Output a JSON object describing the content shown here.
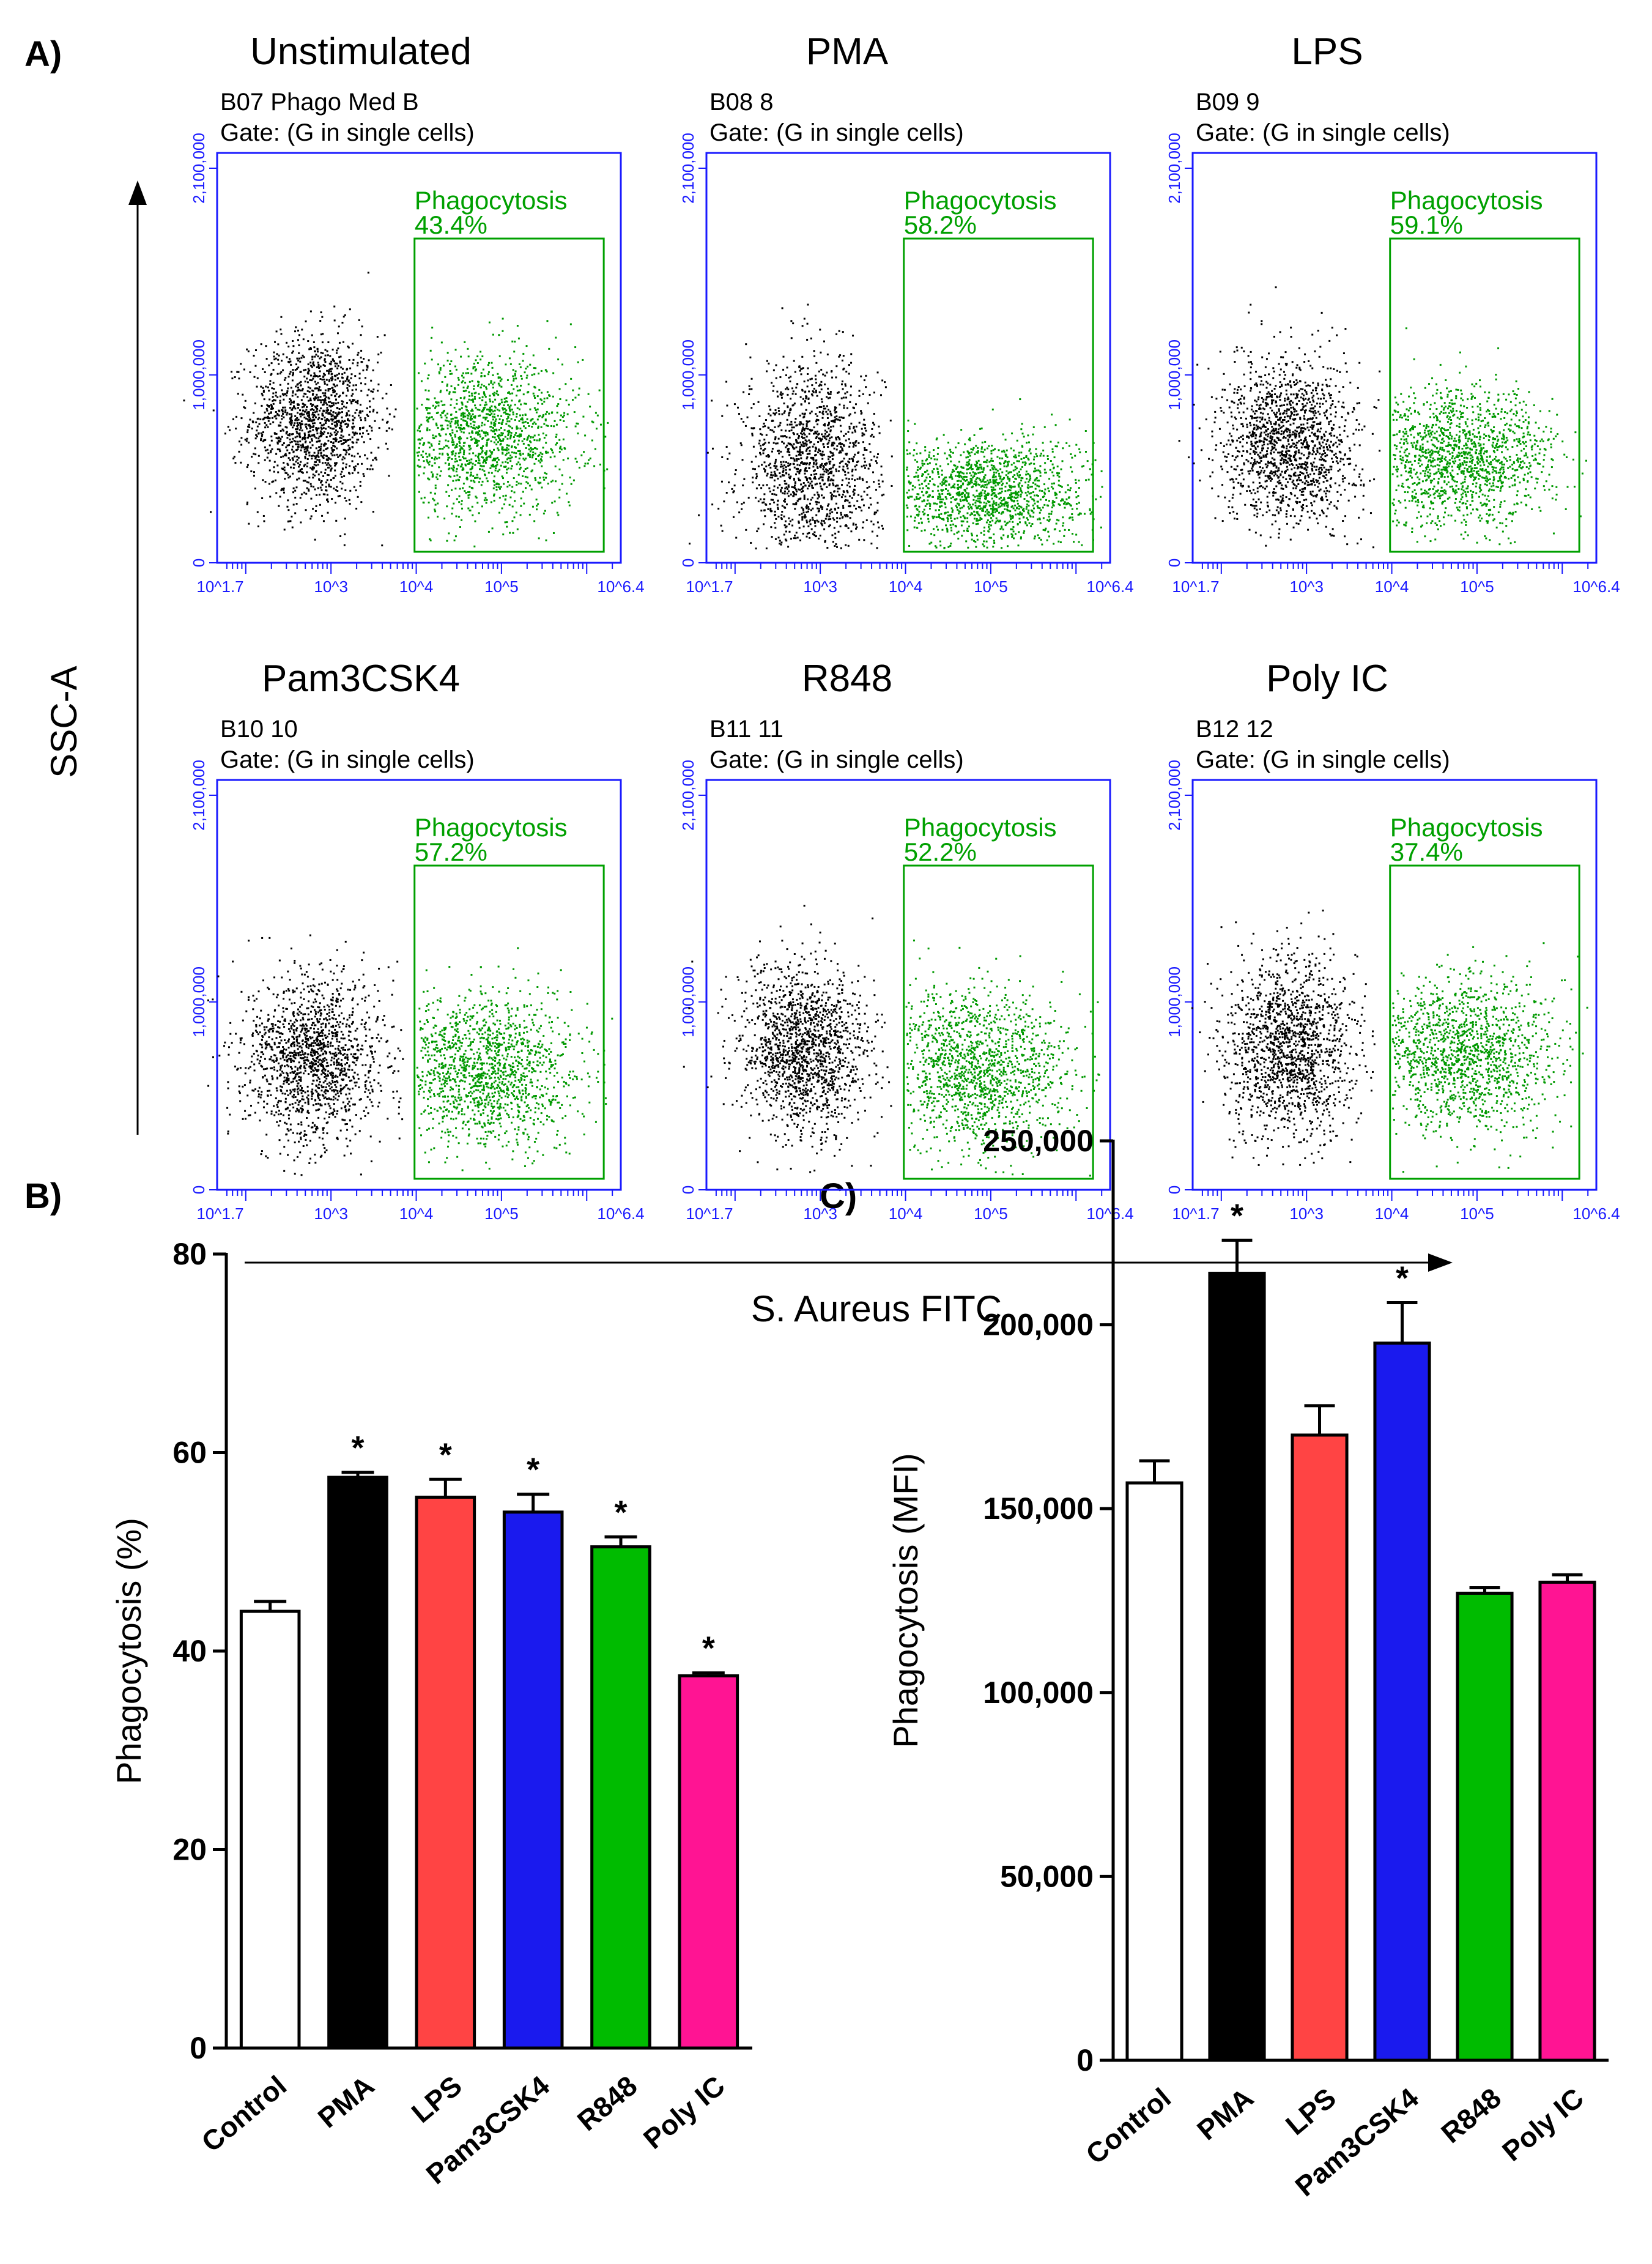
{
  "panels": {
    "a": "A)",
    "b": "B)",
    "c": "C)"
  },
  "colors": {
    "plot_frame": "#1a1aff",
    "gate": "#00a000",
    "dot_neg": "#000000",
    "dot_pos": "#009900"
  },
  "chart_data": [
    {
      "type": "scatter",
      "panel": "A",
      "shared_axes": {
        "ylabel": "SSC-A",
        "xlabel": "S. Aureus FITC",
        "y_ticks": [
          "0",
          "1,000,000",
          "2,100,000"
        ],
        "x_ticks": [
          "10^1.7",
          "10^3",
          "10^4",
          "10^5",
          "10^6.4"
        ]
      },
      "plots": [
        {
          "title": "Unstimulated",
          "sample": "B07 Phago Med B",
          "gate": "Gate: (G in single cells)",
          "gate_label": "Phagocytosis",
          "percent": "43.4%",
          "neg_center": [
            2.8,
            760000
          ],
          "neg_spread": [
            0.38,
            230000
          ],
          "pos_center": [
            4.8,
            680000
          ],
          "pos_spread": [
            0.55,
            210000
          ]
        },
        {
          "title": "PMA",
          "sample": "B08 8",
          "gate": "Gate: (G in single cells)",
          "gate_label": "Phagocytosis",
          "percent": "58.2%",
          "neg_center": [
            2.9,
            520000
          ],
          "neg_spread": [
            0.4,
            280000
          ],
          "pos_center": [
            4.9,
            380000
          ],
          "pos_spread": [
            0.6,
            150000
          ]
        },
        {
          "title": "LPS",
          "sample": "B09 9",
          "gate": "Gate: (G in single cells)",
          "gate_label": "Phagocytosis",
          "percent": "59.1%",
          "neg_center": [
            2.8,
            640000
          ],
          "neg_spread": [
            0.4,
            220000
          ],
          "pos_center": [
            4.8,
            560000
          ],
          "pos_spread": [
            0.55,
            180000
          ]
        },
        {
          "title": "Pam3CSK4",
          "sample": "B10 10",
          "gate": "Gate: (G in single cells)",
          "gate_label": "Phagocytosis",
          "percent": "57.2%",
          "neg_center": [
            2.8,
            700000
          ],
          "neg_spread": [
            0.4,
            220000
          ],
          "pos_center": [
            4.8,
            640000
          ],
          "pos_spread": [
            0.55,
            200000
          ]
        },
        {
          "title": "R848",
          "sample": "B11 11",
          "gate": "Gate: (G in single cells)",
          "gate_label": "Phagocytosis",
          "percent": "52.2%",
          "neg_center": [
            2.8,
            740000
          ],
          "neg_spread": [
            0.38,
            230000
          ],
          "pos_center": [
            4.8,
            650000
          ],
          "pos_spread": [
            0.55,
            210000
          ]
        },
        {
          "title": "Poly IC",
          "sample": "B12 12",
          "gate": "Gate: (G in single cells)",
          "gate_label": "Phagocytosis",
          "percent": "37.4%",
          "neg_center": [
            2.8,
            760000
          ],
          "neg_spread": [
            0.38,
            240000
          ],
          "pos_center": [
            4.8,
            720000
          ],
          "pos_spread": [
            0.55,
            210000
          ]
        }
      ]
    },
    {
      "type": "bar",
      "panel": "B",
      "ylabel": "Phagocytosis (%)",
      "ylim": [
        0,
        80
      ],
      "yticks": [
        "0",
        "20",
        "40",
        "60",
        "80"
      ],
      "categories": [
        "Control",
        "PMA",
        "LPS",
        "Pam3CSK4",
        "R848",
        "Poly IC"
      ],
      "values": [
        44,
        57.5,
        55.5,
        54,
        50.5,
        37.5
      ],
      "errors": [
        1,
        0.5,
        1.8,
        1.8,
        1,
        0.3
      ],
      "significant": [
        "",
        "*",
        "*",
        "*",
        "*",
        "*"
      ],
      "bar_colors": [
        "#ffffff",
        "#000000",
        "#ff4444",
        "#1a1aee",
        "#00bb00",
        "#ff1493"
      ]
    },
    {
      "type": "bar",
      "panel": "C",
      "ylabel": "Phagocytosis (MFI)",
      "ylim": [
        0,
        250000
      ],
      "yticks": [
        "0",
        "50,000",
        "100,000",
        "150,000",
        "200,000",
        "250,000"
      ],
      "categories": [
        "Control",
        "PMA",
        "LPS",
        "Pam3CSK4",
        "R848",
        "Poly IC"
      ],
      "values": [
        157000,
        214000,
        170000,
        195000,
        127000,
        130000
      ],
      "errors": [
        6000,
        9000,
        8000,
        11000,
        1500,
        2000
      ],
      "significant": [
        "",
        "*",
        "",
        "*",
        "",
        ""
      ],
      "bar_colors": [
        "#ffffff",
        "#000000",
        "#ff4444",
        "#1a1aee",
        "#00bb00",
        "#ff1493"
      ]
    }
  ]
}
